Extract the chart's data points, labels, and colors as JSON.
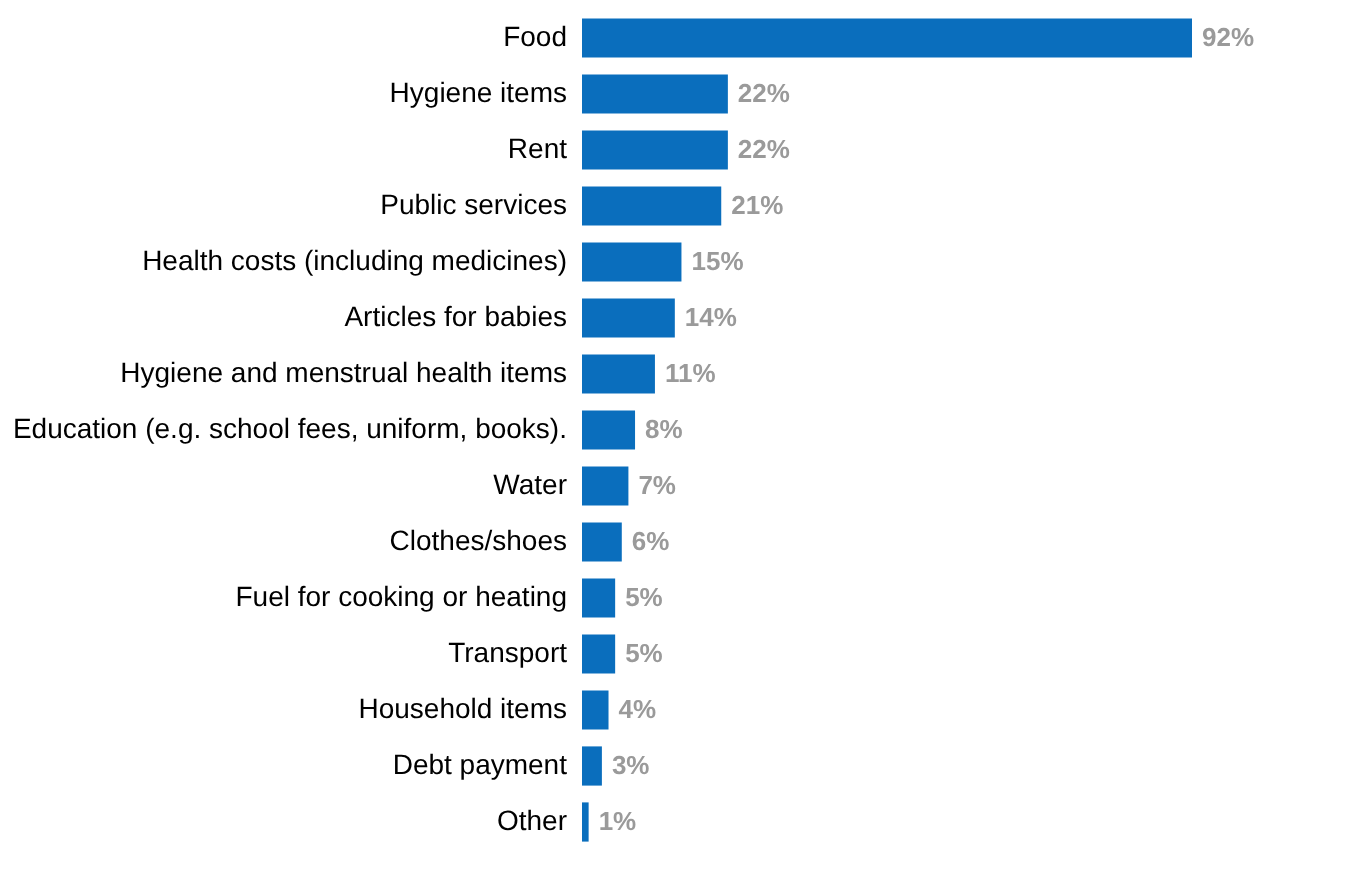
{
  "chart_data": {
    "type": "bar",
    "orientation": "horizontal",
    "color": "#0a6ebd",
    "categories": [
      "Food",
      "Hygiene items",
      "Rent",
      "Public services",
      "Health costs (including medicines)",
      "Articles for babies",
      "Hygiene and menstrual health items",
      "Education (e.g. school fees, uniform, books).",
      "Water",
      "Clothes/shoes",
      "Fuel for cooking or heating",
      "Transport",
      "Household items",
      "Debt payment",
      "Other"
    ],
    "values": [
      92,
      22,
      22,
      21,
      15,
      14,
      11,
      8,
      7,
      6,
      5,
      5,
      4,
      3,
      1
    ],
    "value_labels": [
      "92%",
      "22%",
      "22%",
      "21%",
      "15%",
      "14%",
      "11%",
      "8%",
      "7%",
      "6%",
      "5%",
      "5%",
      "4%",
      "3%",
      "1%"
    ]
  }
}
